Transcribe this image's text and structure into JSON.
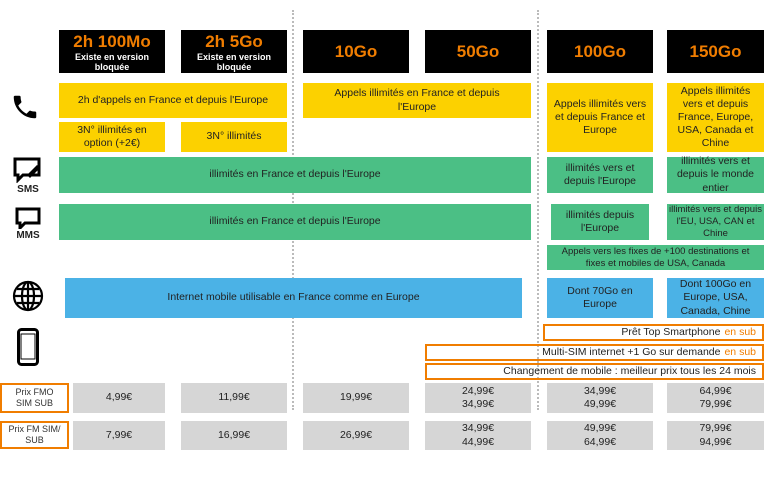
{
  "plans": [
    {
      "name": "2h 100Mo",
      "sub": "Existe en version bloquée"
    },
    {
      "name": "2h 5Go",
      "sub": "Existe en version bloquée"
    },
    {
      "name": "10Go"
    },
    {
      "name": "50Go"
    },
    {
      "name": "100Go"
    },
    {
      "name": "150Go"
    }
  ],
  "calls": {
    "p12": "2h d'appels en France et depuis l'Europe",
    "p34": "Appels illimités en France et depuis l'Europe",
    "p5": "Appels illimités vers et depuis France et Europe",
    "p6": "Appels illimités vers et depuis France, Europe, USA, Canada et Chine",
    "n1": "3N° illimités en option (+2€)",
    "n2": "3N° illimités"
  },
  "sms": {
    "label": "SMS",
    "p14": "illimités en France et depuis l'Europe",
    "p5": "illimités vers et depuis l'Europe",
    "p6": "illimités vers et depuis le monde entier"
  },
  "mms": {
    "label": "MMS",
    "p14": "illimités en France et depuis l'Europe",
    "p5": "illimités depuis l'Europe",
    "p6": "illimités vers et depuis l'EU, USA, CAN et Chine"
  },
  "fixes": "Appels vers les fixes de +100 destinations et fixes et mobiles de USA, Canada",
  "internet": {
    "p14": "Internet mobile utilisable en France comme en Europe",
    "p5": "Dont 70Go en Europe",
    "p6": "Dont 100Go en Europe, USA, Canada, Chine"
  },
  "extras": {
    "pret": "Prêt Top Smartphone",
    "pret_acc": "en sub",
    "multisim": "Multi-SIM internet +1 Go sur demande",
    "multisim_acc": "en sub",
    "changement": "Changement de mobile  : meilleur prix tous les 24 mois"
  },
  "prices": [
    {
      "label": "Prix FMO SIM SUB",
      "values": [
        [
          "4,99€"
        ],
        [
          "11,99€"
        ],
        [
          "19,99€"
        ],
        [
          "24,99€",
          "34,99€"
        ],
        [
          "34,99€",
          "49,99€"
        ],
        [
          "64,99€",
          "79,99€"
        ]
      ]
    },
    {
      "label": "Prix FM SIM/ SUB",
      "values": [
        [
          "7,99€"
        ],
        [
          "16,99€"
        ],
        [
          "26,99€"
        ],
        [
          "34,99€",
          "44,99€"
        ],
        [
          "49,99€",
          "64,99€"
        ],
        [
          "79,99€",
          "94,99€"
        ]
      ]
    }
  ],
  "colors": {
    "orange": "#f07d00",
    "yellow": "#fcd100",
    "green": "#4bbf85",
    "blue": "#4bb2e6",
    "grey": "#d6d6d6"
  }
}
